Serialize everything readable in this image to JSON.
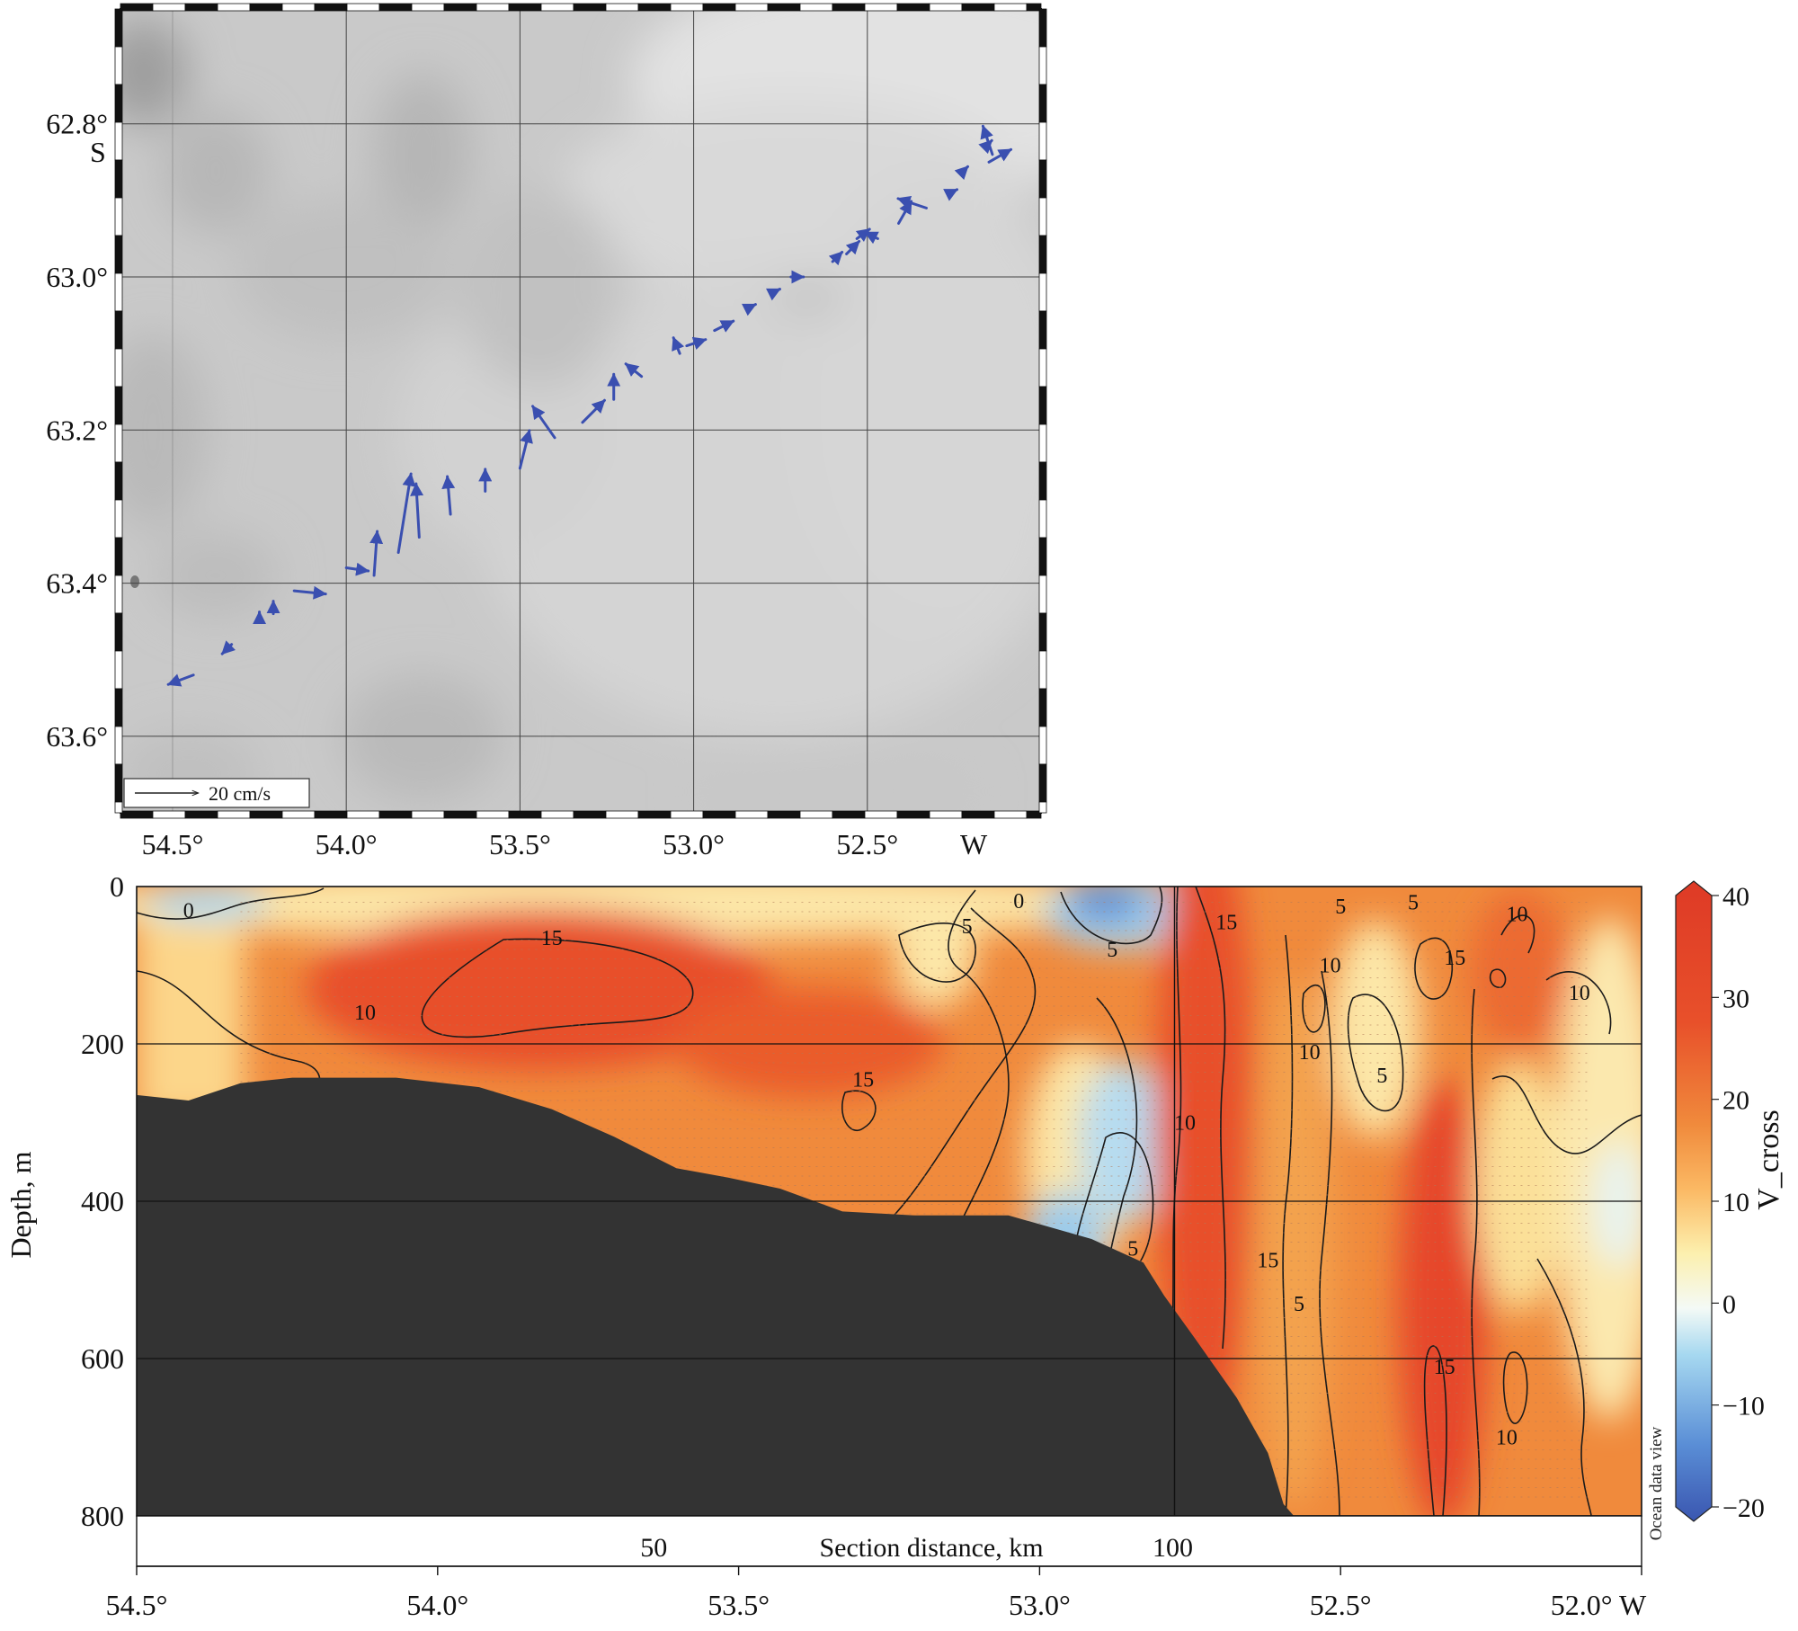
{
  "chart_data": [
    {
      "type": "vector-map",
      "lat_ticks": [
        "62.8°",
        "63.0°",
        "63.2°",
        "63.4°",
        "63.6°"
      ],
      "lat_values": [
        62.8,
        63.0,
        63.2,
        63.4,
        63.6
      ],
      "lat_hemisphere": "S",
      "lon_ticks": [
        "54.5°",
        "54.0°",
        "53.5°",
        "53.0°",
        "52.5°"
      ],
      "lon_values": [
        54.5,
        54.0,
        53.5,
        53.0,
        52.5
      ],
      "lon_hemisphere": "W",
      "lon_range": [
        54.65,
        52.0
      ],
      "lat_range": [
        62.65,
        63.7
      ],
      "scale_label": "20 cm/s",
      "scale_value": 20,
      "vector_color": "#3a4fb0",
      "vectors": [
        {
          "lon": 54.44,
          "lat": 63.52,
          "u": -8,
          "v": -3
        },
        {
          "lon": 54.33,
          "lat": 63.48,
          "u": -3,
          "v": -3
        },
        {
          "lon": 54.25,
          "lat": 63.45,
          "u": 0,
          "v": 3
        },
        {
          "lon": 54.21,
          "lat": 63.44,
          "u": 0,
          "v": 4
        },
        {
          "lon": 54.15,
          "lat": 63.41,
          "u": 10,
          "v": -1
        },
        {
          "lon": 54.0,
          "lat": 63.38,
          "u": 7,
          "v": -1
        },
        {
          "lon": 53.92,
          "lat": 63.39,
          "u": 1,
          "v": 14
        },
        {
          "lon": 53.85,
          "lat": 63.36,
          "u": 4,
          "v": 25
        },
        {
          "lon": 53.79,
          "lat": 63.34,
          "u": -1,
          "v": 17
        },
        {
          "lon": 53.7,
          "lat": 63.31,
          "u": -1,
          "v": 12
        },
        {
          "lon": 53.6,
          "lat": 63.28,
          "u": 0,
          "v": 7
        },
        {
          "lon": 53.5,
          "lat": 63.25,
          "u": 3,
          "v": 12
        },
        {
          "lon": 53.4,
          "lat": 63.21,
          "u": -7,
          "v": 10
        },
        {
          "lon": 53.32,
          "lat": 63.19,
          "u": 7,
          "v": 7
        },
        {
          "lon": 53.23,
          "lat": 63.16,
          "u": 0,
          "v": 8
        },
        {
          "lon": 53.15,
          "lat": 63.13,
          "u": -5,
          "v": 4
        },
        {
          "lon": 53.04,
          "lat": 63.1,
          "u": -2,
          "v": 5
        },
        {
          "lon": 53.02,
          "lat": 63.09,
          "u": 6,
          "v": 2
        },
        {
          "lon": 52.94,
          "lat": 63.07,
          "u": 6,
          "v": 3
        },
        {
          "lon": 52.84,
          "lat": 63.04,
          "u": 2,
          "v": 1
        },
        {
          "lon": 52.77,
          "lat": 63.02,
          "u": 2,
          "v": 1
        },
        {
          "lon": 52.72,
          "lat": 63.0,
          "u": 4,
          "v": 0
        },
        {
          "lon": 52.6,
          "lat": 62.98,
          "u": 3,
          "v": 3
        },
        {
          "lon": 52.56,
          "lat": 62.97,
          "u": 4,
          "v": 4
        },
        {
          "lon": 52.53,
          "lat": 62.95,
          "u": 4,
          "v": 3
        },
        {
          "lon": 52.47,
          "lat": 62.95,
          "u": -4,
          "v": 2
        },
        {
          "lon": 52.41,
          "lat": 62.93,
          "u": 4,
          "v": 7
        },
        {
          "lon": 52.33,
          "lat": 62.91,
          "u": -9,
          "v": 3
        },
        {
          "lon": 52.26,
          "lat": 62.89,
          "u": 2,
          "v": 1
        },
        {
          "lon": 52.22,
          "lat": 62.86,
          "u": 1,
          "v": 1
        },
        {
          "lon": 52.15,
          "lat": 62.85,
          "u": 7,
          "v": 4
        },
        {
          "lon": 52.14,
          "lat": 62.84,
          "u": -3,
          "v": 9
        },
        {
          "lon": 52.16,
          "lat": 62.83,
          "u": 2,
          "v": 2
        }
      ]
    },
    {
      "type": "heatmap",
      "variable": "V_cross",
      "colorbar_label": "V_cross",
      "colorbar_ticks": [
        40,
        30,
        20,
        10,
        0,
        -10,
        -20
      ],
      "colorbar_tick_labels": [
        "40",
        "30",
        "20",
        "10",
        "0",
        "−10",
        "−20"
      ],
      "clim": [
        -20,
        40
      ],
      "ylabel": "Depth, m",
      "ylim": [
        0,
        800
      ],
      "y_ticks": [
        0,
        200,
        400,
        600,
        800
      ],
      "y_tick_labels": [
        "0",
        "200",
        "400",
        "600",
        "800"
      ],
      "xlabel": "Section distance, km",
      "x_km_range": [
        0,
        145
      ],
      "x_km_ticks": [
        50,
        100
      ],
      "x_km_tick_labels": [
        "50",
        "100"
      ],
      "lon_axis": {
        "values": [
          54.5,
          54.0,
          53.5,
          53.0,
          52.5,
          52.0
        ],
        "labels": [
          "54.5°",
          "54.0°",
          "53.5°",
          "53.0°",
          "52.5°",
          "52.0° W"
        ]
      },
      "watermark": "Ocean data view",
      "bottom_profile": [
        {
          "km": 0,
          "depth": 265
        },
        {
          "km": 5,
          "depth": 272
        },
        {
          "km": 10,
          "depth": 250
        },
        {
          "km": 15,
          "depth": 243
        },
        {
          "km": 25,
          "depth": 243
        },
        {
          "km": 33,
          "depth": 255
        },
        {
          "km": 40,
          "depth": 283
        },
        {
          "km": 46,
          "depth": 318
        },
        {
          "km": 52,
          "depth": 358
        },
        {
          "km": 57,
          "depth": 370
        },
        {
          "km": 62,
          "depth": 384
        },
        {
          "km": 68,
          "depth": 413
        },
        {
          "km": 75,
          "depth": 418
        },
        {
          "km": 84,
          "depth": 418
        },
        {
          "km": 92,
          "depth": 448
        },
        {
          "km": 97,
          "depth": 478
        },
        {
          "km": 99,
          "depth": 520
        },
        {
          "km": 102,
          "depth": 575
        },
        {
          "km": 106,
          "depth": 650
        },
        {
          "km": 109,
          "depth": 720
        },
        {
          "km": 110.5,
          "depth": 785
        },
        {
          "km": 111.5,
          "depth": 800
        }
      ],
      "contour_labels": [
        {
          "text": "0",
          "km": 5,
          "depth": 30
        },
        {
          "text": "0",
          "km": 85,
          "depth": 18
        },
        {
          "text": "5",
          "km": 80,
          "depth": 50
        },
        {
          "text": "5",
          "km": 94,
          "depth": 80
        },
        {
          "text": "5",
          "km": 116,
          "depth": 25
        },
        {
          "text": "5",
          "km": 123,
          "depth": 20
        },
        {
          "text": "5",
          "km": 120,
          "depth": 240
        },
        {
          "text": "5",
          "km": 112,
          "depth": 530
        },
        {
          "text": "5",
          "km": 96,
          "depth": 460
        },
        {
          "text": "10",
          "km": 22,
          "depth": 160
        },
        {
          "text": "10",
          "km": 101,
          "depth": 300
        },
        {
          "text": "10",
          "km": 115,
          "depth": 100
        },
        {
          "text": "10",
          "km": 113,
          "depth": 210
        },
        {
          "text": "10",
          "km": 133,
          "depth": 35
        },
        {
          "text": "10",
          "km": 139,
          "depth": 135
        },
        {
          "text": "10",
          "km": 132,
          "depth": 700
        },
        {
          "text": "15",
          "km": 40,
          "depth": 65
        },
        {
          "text": "15",
          "km": 70,
          "depth": 245
        },
        {
          "text": "15",
          "km": 105,
          "depth": 45
        },
        {
          "text": "15",
          "km": 127,
          "depth": 90
        },
        {
          "text": "15",
          "km": 109,
          "depth": 475
        },
        {
          "text": "15",
          "km": 126,
          "depth": 610
        }
      ]
    }
  ]
}
